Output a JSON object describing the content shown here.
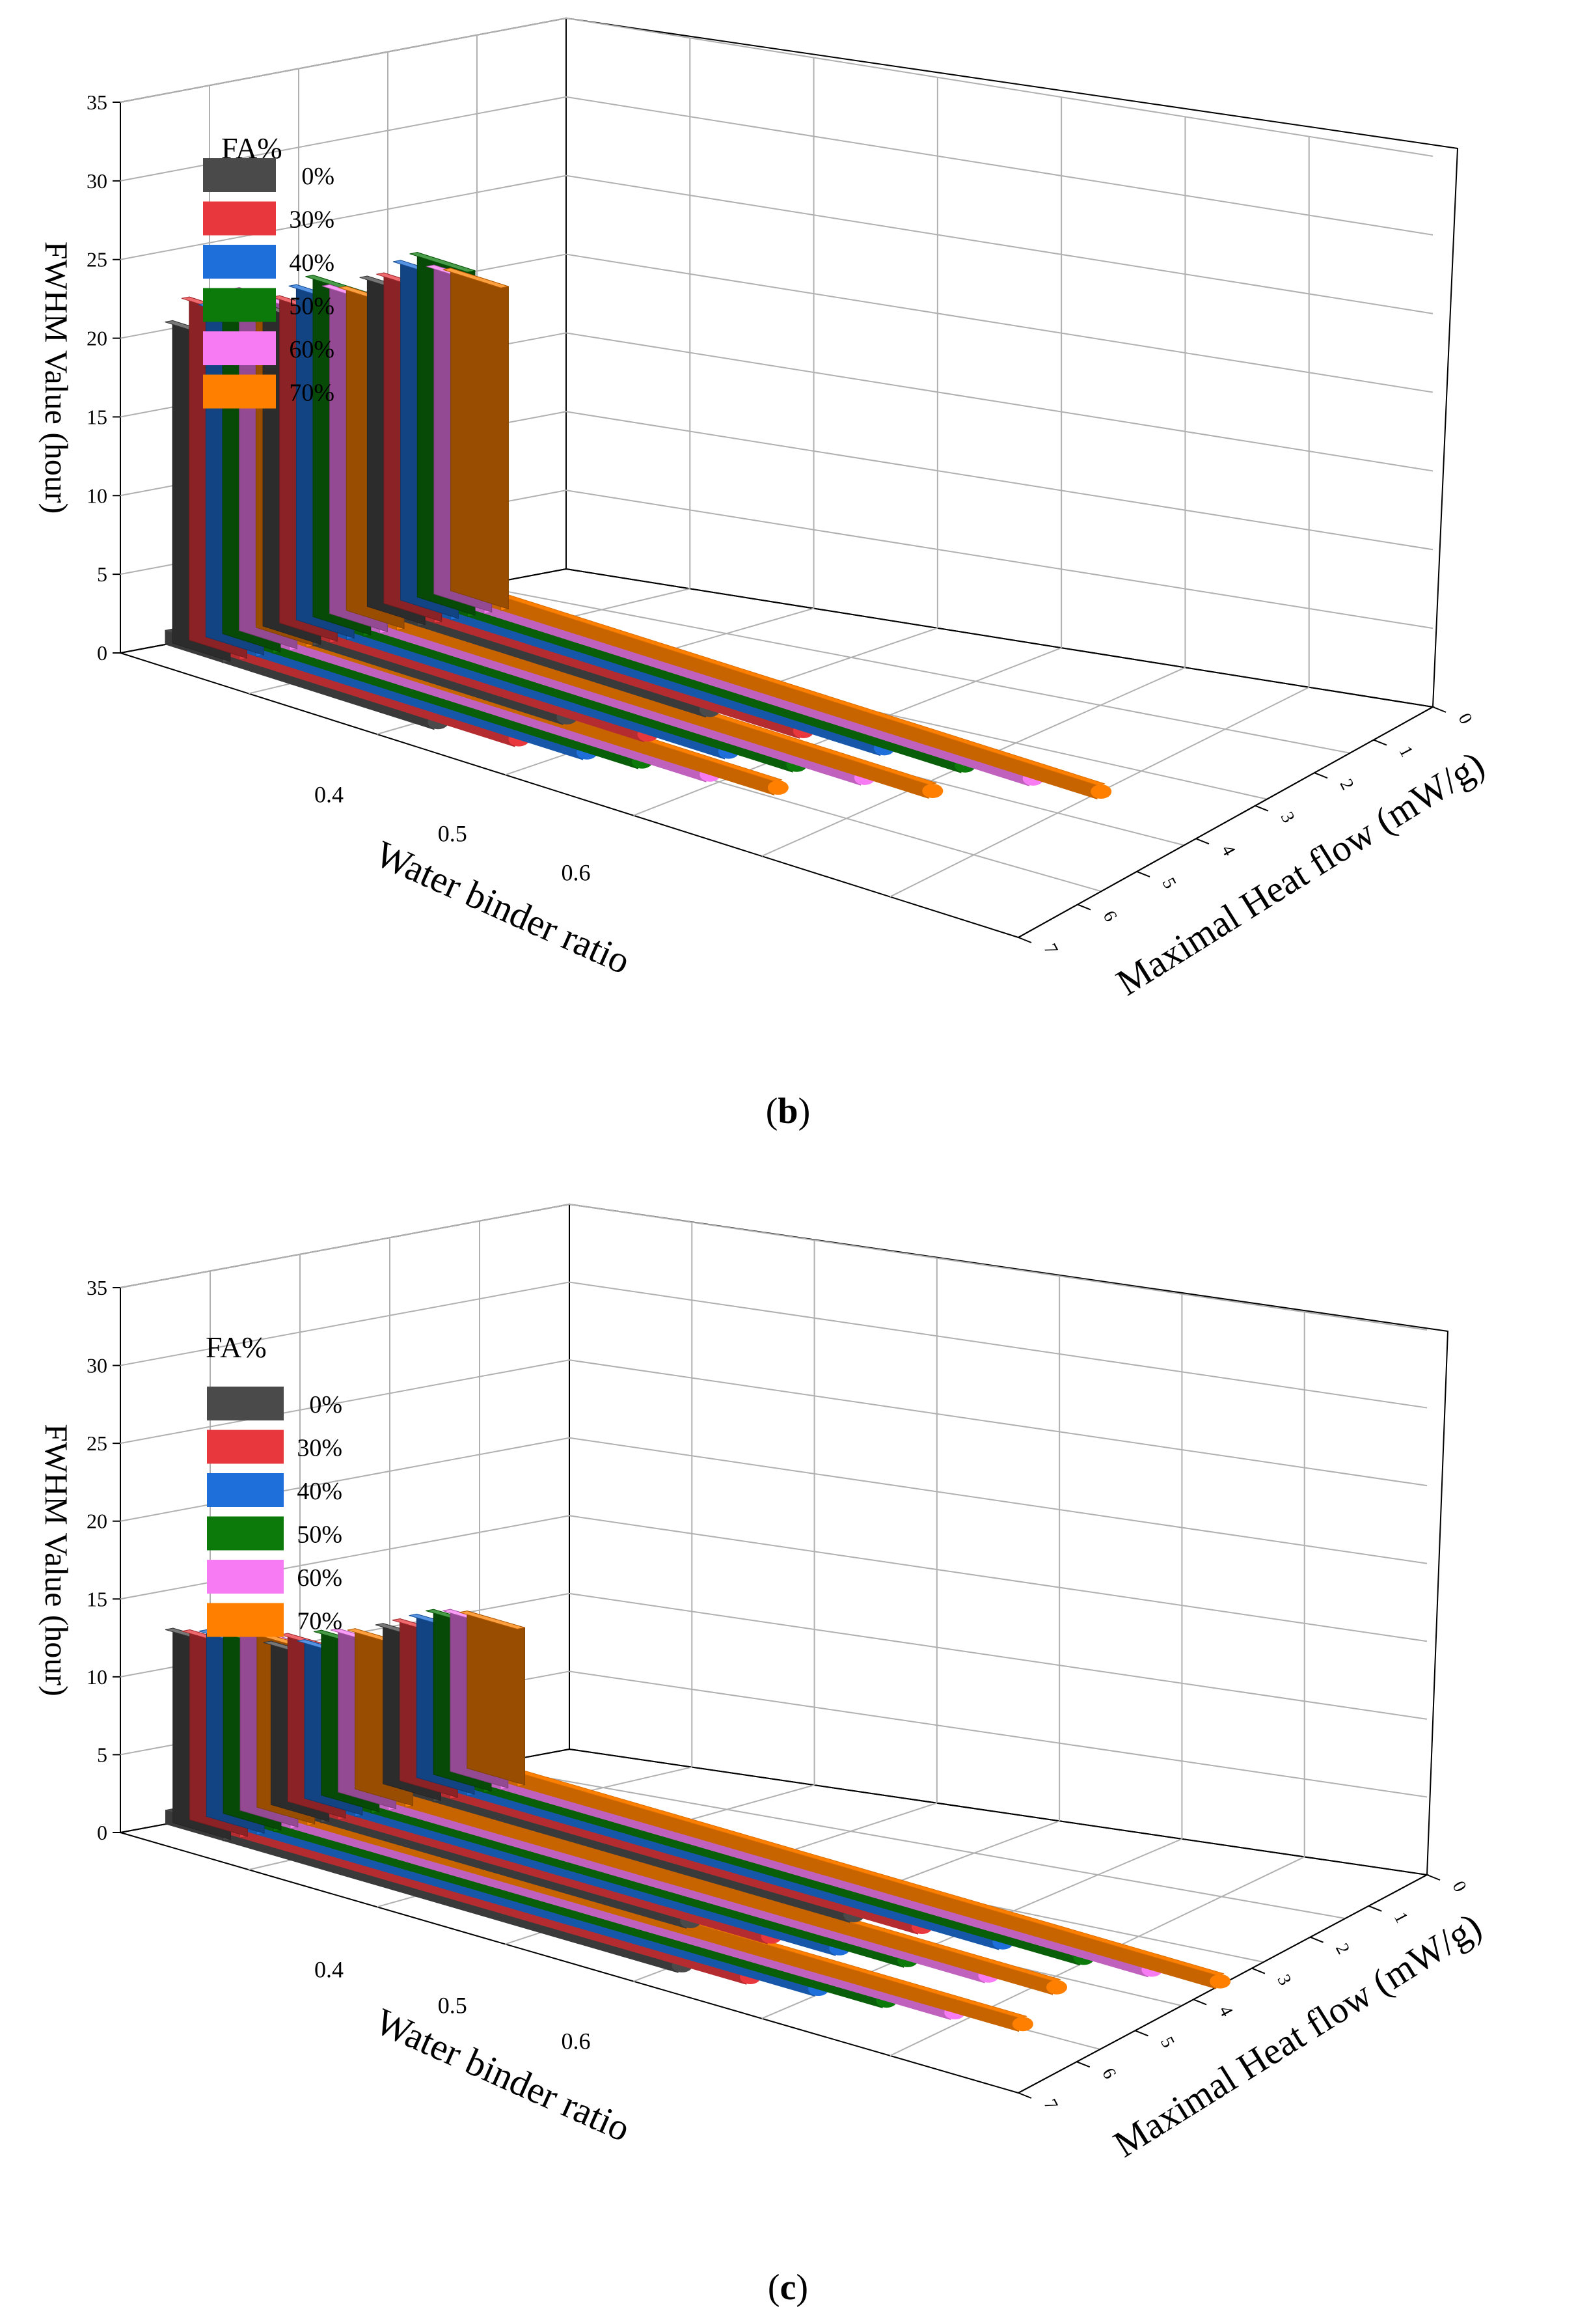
{
  "chart_data": [
    {
      "type": "bar",
      "panel_label": "b",
      "zlabel": "FWHM Value (hour)",
      "xlabel": "Water binder ratio",
      "ylabel": "Maximal Heat flow (mW/g)",
      "x_categories": [
        "0.4",
        "0.5",
        "0.6"
      ],
      "z_ticks": [
        "0",
        "5",
        "10",
        "15",
        "20",
        "25",
        "30",
        "35"
      ],
      "y_ticks": [
        "0",
        "1",
        "2",
        "3",
        "4",
        "5",
        "6",
        "7"
      ],
      "zlim": [
        0,
        35
      ],
      "ylim": [
        0,
        7
      ],
      "legend_title": "FA%",
      "series": [
        {
          "name": "0%",
          "color": "#4a4a4a",
          "fwhm": [
            20.5,
            20.5,
            21.0
          ],
          "heat_flow": [
            2.1,
            2.4,
            2.7
          ]
        },
        {
          "name": "30%",
          "color": "#e8383d",
          "fwhm": [
            21.8,
            20.8,
            21.0
          ],
          "heat_flow": [
            2.6,
            2.9,
            3.3
          ]
        },
        {
          "name": "40%",
          "color": "#1e6fd9",
          "fwhm": [
            21.2,
            21.3,
            21.6
          ],
          "heat_flow": [
            3.0,
            3.4,
            3.8
          ]
        },
        {
          "name": "50%",
          "color": "#0b7a0b",
          "fwhm": [
            21.3,
            21.7,
            21.9
          ],
          "heat_flow": [
            3.3,
            3.8,
            4.3
          ]
        },
        {
          "name": "60%",
          "color": "#f77cf3",
          "fwhm": [
            21.8,
            20.9,
            20.9
          ],
          "heat_flow": [
            3.7,
            4.2,
            4.7
          ]
        },
        {
          "name": "70%",
          "color": "#ff8000",
          "fwhm": [
            20.7,
            20.6,
            20.5
          ],
          "heat_flow": [
            4.1,
            4.6,
            5.1
          ]
        }
      ]
    },
    {
      "type": "bar",
      "panel_label": "c",
      "zlabel": "FWHM Value (hour)",
      "xlabel": "Water binder ratio",
      "ylabel": "Maximal Heat flow (mW/g)",
      "x_categories": [
        "0.4",
        "0.5",
        "0.6"
      ],
      "z_ticks": [
        "0",
        "5",
        "10",
        "15",
        "20",
        "25",
        "30",
        "35"
      ],
      "y_ticks": [
        "0",
        "1",
        "2",
        "3",
        "4",
        "5",
        "6",
        "7"
      ],
      "zlim": [
        0,
        35
      ],
      "ylim": [
        0,
        7
      ],
      "legend_title": "FA%",
      "series": [
        {
          "name": "0%",
          "color": "#4a4a4a",
          "fwhm": [
            12.5,
            10.5,
            10.3
          ],
          "heat_flow": [
            4.0,
            3.3,
            3.7
          ]
        },
        {
          "name": "30%",
          "color": "#e8383d",
          "fwhm": [
            12.2,
            10.8,
            10.4
          ],
          "heat_flow": [
            4.4,
            3.8,
            4.1
          ]
        },
        {
          "name": "40%",
          "color": "#1e6fd9",
          "fwhm": [
            12.0,
            10.2,
            10.5
          ],
          "heat_flow": [
            4.8,
            4.2,
            4.6
          ]
        },
        {
          "name": "50%",
          "color": "#0b7a0b",
          "fwhm": [
            11.8,
            10.6,
            10.6
          ],
          "heat_flow": [
            5.2,
            4.6,
            5.1
          ]
        },
        {
          "name": "60%",
          "color": "#f77cf3",
          "fwhm": [
            11.9,
            10.5,
            10.4
          ],
          "heat_flow": [
            5.6,
            5.1,
            5.5
          ]
        },
        {
          "name": "70%",
          "color": "#ff8000",
          "fwhm": [
            11.3,
            10.3,
            10.1
          ],
          "heat_flow": [
            6.0,
            5.5,
            5.9
          ]
        }
      ]
    }
  ]
}
